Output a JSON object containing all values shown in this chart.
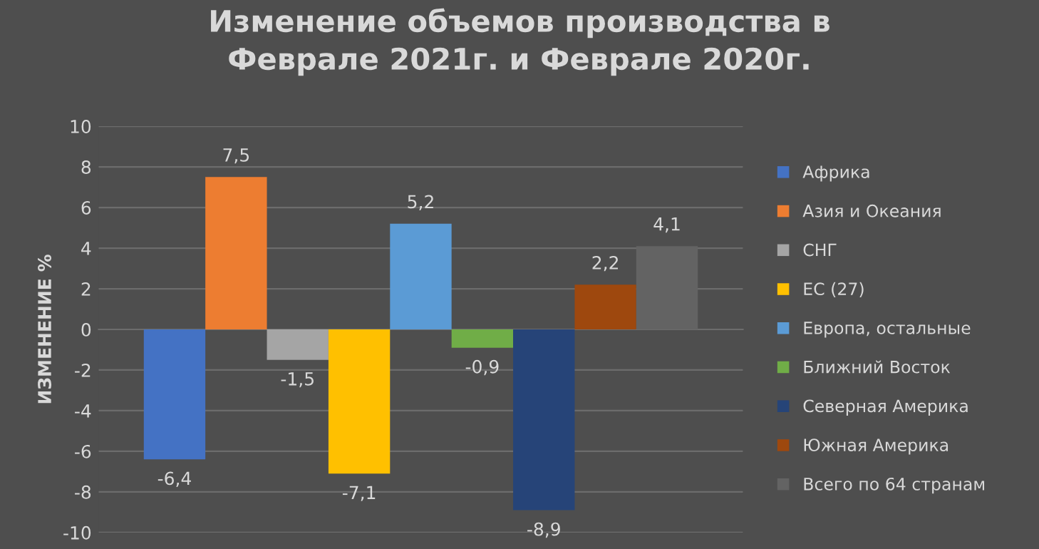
{
  "chart_data": {
    "type": "bar",
    "title": "Изменение объемов производства в\nФеврале 2021г. и Феврале 2020г.",
    "ylabel": "ИЗМЕНЕНИЕ %",
    "categories": [
      null
    ],
    "series": [
      {
        "name": "Африка",
        "color": "#4472c4",
        "values": [
          -6.4
        ],
        "value_labels": [
          "-6,4"
        ]
      },
      {
        "name": "Азия и Океания",
        "color": "#ed7d31",
        "values": [
          7.5
        ],
        "value_labels": [
          "7,5"
        ]
      },
      {
        "name": "СНГ",
        "color": "#a5a5a5",
        "values": [
          -1.5
        ],
        "value_labels": [
          "-1,5"
        ]
      },
      {
        "name": "ЕС (27)",
        "color": "#ffc000",
        "values": [
          -7.1
        ],
        "value_labels": [
          "-7,1"
        ]
      },
      {
        "name": "Европа, остальные",
        "color": "#5b9bd5",
        "values": [
          5.2
        ],
        "value_labels": [
          "5,2"
        ]
      },
      {
        "name": "Ближний Восток",
        "color": "#70ad47",
        "values": [
          -0.9
        ],
        "value_labels": [
          "-0,9"
        ]
      },
      {
        "name": "Северная Америка",
        "color": "#264478",
        "values": [
          -8.9
        ],
        "value_labels": [
          "-8,9"
        ]
      },
      {
        "name": "Южная Америка",
        "color": "#9e480e",
        "values": [
          2.2
        ],
        "value_labels": [
          "2,2"
        ]
      },
      {
        "name": "Всего по 64 странам",
        "color": "#636363",
        "values": [
          4.1
        ],
        "value_labels": [
          "4,1"
        ]
      }
    ],
    "ylim": [
      -10,
      10
    ],
    "yticks": [
      -10,
      -8,
      -6,
      -4,
      -2,
      0,
      2,
      4,
      6,
      8,
      10
    ],
    "grid": "y",
    "legend": "right"
  }
}
